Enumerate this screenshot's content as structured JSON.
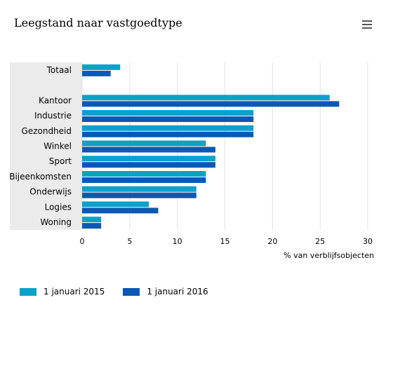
{
  "chart_data": {
    "type": "bar",
    "orientation": "horizontal",
    "title": "Leegstand naar vastgoedtype",
    "categories": [
      "Totaal",
      "",
      "Kantoor",
      "Industrie",
      "Gezondheid",
      "Winkel",
      "Sport",
      "Bijeenkomsten",
      "Onderwijs",
      "Logies",
      "Woning"
    ],
    "series": [
      {
        "name": "1 januari 2015",
        "color": "#0aa1cb",
        "values": [
          4,
          null,
          26,
          18,
          18,
          13,
          14,
          13,
          12,
          7,
          2
        ]
      },
      {
        "name": "1 januari 2016",
        "color": "#0b58b5",
        "values": [
          3,
          null,
          27,
          18,
          18,
          14,
          14,
          13,
          12,
          8,
          2
        ]
      }
    ],
    "xlabel": "% van verblijfsobjecten",
    "xlim": [
      0,
      30
    ],
    "xticks": [
      "0",
      "5",
      "10",
      "15",
      "20",
      "25",
      "30"
    ],
    "grid": true,
    "legend_position": "bottom-left"
  },
  "toolbar": {
    "menu_icon": "hamburger-menu-icon"
  }
}
